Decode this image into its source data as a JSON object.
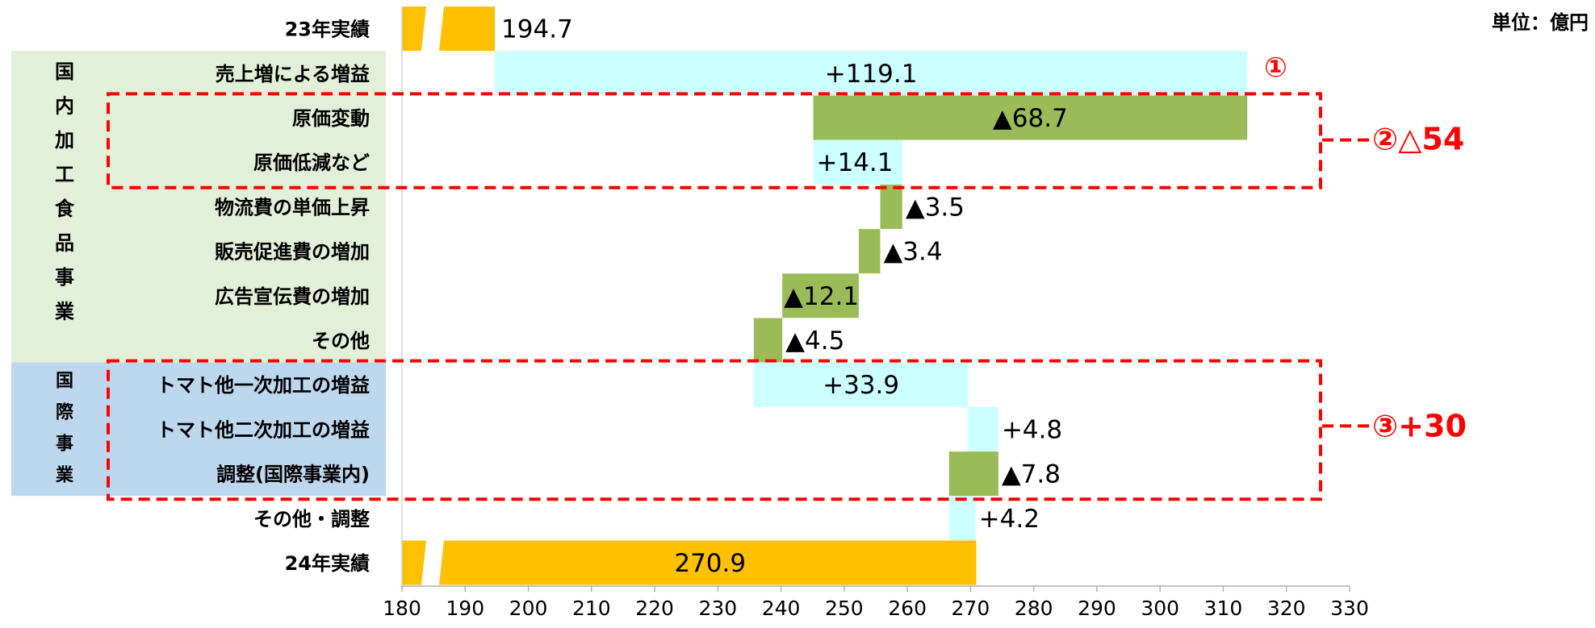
{
  "unit_label": "単位：億円",
  "groups": [
    {
      "label": "国内加工食品事業",
      "color": "#e2efd9",
      "chars": [
        "国",
        "内",
        "加",
        "工",
        "食",
        "品",
        "事",
        "業"
      ]
    },
    {
      "label": "国際事業",
      "color": "#bdd7ee",
      "chars": [
        "国",
        "際",
        "事",
        "業"
      ]
    }
  ],
  "annotations": [
    {
      "marker": "①",
      "text": "①"
    },
    {
      "marker": "②",
      "text": "②△54"
    },
    {
      "marker": "③",
      "text": "③+30"
    }
  ],
  "colors": {
    "total": "#ffc000",
    "increase": "#ccffff",
    "decrease": "#9bbb59",
    "group_domestic": "#e2efd9",
    "group_international": "#bdd7ee",
    "annotation": "#ff0000"
  },
  "chart_data": {
    "type": "bar",
    "subtype": "waterfall-horizontal",
    "xlim": [
      180,
      330
    ],
    "xticks": [
      180,
      190,
      200,
      210,
      220,
      230,
      240,
      250,
      260,
      270,
      280,
      290,
      300,
      310,
      320,
      330
    ],
    "axis_break": true,
    "rows": [
      {
        "category": "23年実績",
        "kind": "total",
        "value": 194.7,
        "label": "194.7"
      },
      {
        "category": "売上増による増益",
        "kind": "increase",
        "value": 119.1,
        "label": "+119.1"
      },
      {
        "category": "原価変動",
        "kind": "decrease",
        "value": -68.7,
        "label": "▲68.7"
      },
      {
        "category": "原価低減など",
        "kind": "increase",
        "value": 14.1,
        "label": "+14.1"
      },
      {
        "category": "物流費の単価上昇",
        "kind": "decrease",
        "value": -3.5,
        "label": "▲3.5"
      },
      {
        "category": "販売促進費の増加",
        "kind": "decrease",
        "value": -3.4,
        "label": "▲3.4"
      },
      {
        "category": "広告宣伝費の増加",
        "kind": "decrease",
        "value": -12.1,
        "label": "▲12.1"
      },
      {
        "category": "その他",
        "kind": "decrease",
        "value": -4.5,
        "label": "▲4.5"
      },
      {
        "category": "トマト他一次加工の増益",
        "kind": "increase",
        "value": 33.9,
        "label": "+33.9"
      },
      {
        "category": "トマト他二次加工の増益",
        "kind": "increase",
        "value": 4.8,
        "label": "+4.8"
      },
      {
        "category": "調整(国際事業内)",
        "kind": "decrease",
        "value": -7.8,
        "label": "▲7.8"
      },
      {
        "category": "その他・調整",
        "kind": "increase",
        "value": 4.2,
        "label": "+4.2"
      },
      {
        "category": "24年実績",
        "kind": "total",
        "value": 270.9,
        "label": "270.9"
      }
    ]
  }
}
